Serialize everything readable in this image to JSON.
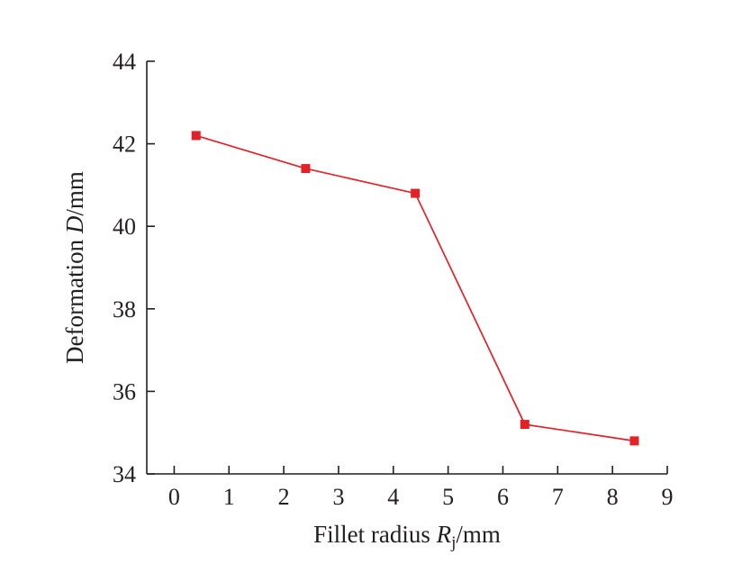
{
  "chart_data": {
    "type": "line",
    "title": "",
    "x_axis": {
      "title_prefix": "Fillet radius ",
      "title_var": "R",
      "title_sub": "j",
      "title_unit": "/mm",
      "range": [
        -0.5,
        9
      ],
      "ticks": [
        0,
        1,
        2,
        3,
        4,
        5,
        6,
        7,
        8,
        9
      ],
      "tick_labels": [
        "0",
        "1",
        "2",
        "3",
        "4",
        "5",
        "6",
        "7",
        "8",
        "9"
      ]
    },
    "y_axis": {
      "title_prefix": "Deformation ",
      "title_var": "D",
      "title_unit": "/mm",
      "range": [
        34,
        44
      ],
      "ticks": [
        34,
        36,
        38,
        40,
        42,
        44
      ],
      "tick_labels": [
        "34",
        "36",
        "38",
        "40",
        "42",
        "44"
      ]
    },
    "grid": false,
    "legend": "none",
    "series": [
      {
        "color": "#e32228",
        "marker": "square",
        "x": [
          0.4,
          2.4,
          4.4,
          6.4,
          8.4
        ],
        "y": [
          42.2,
          41.4,
          40.8,
          35.2,
          34.8
        ]
      }
    ]
  }
}
